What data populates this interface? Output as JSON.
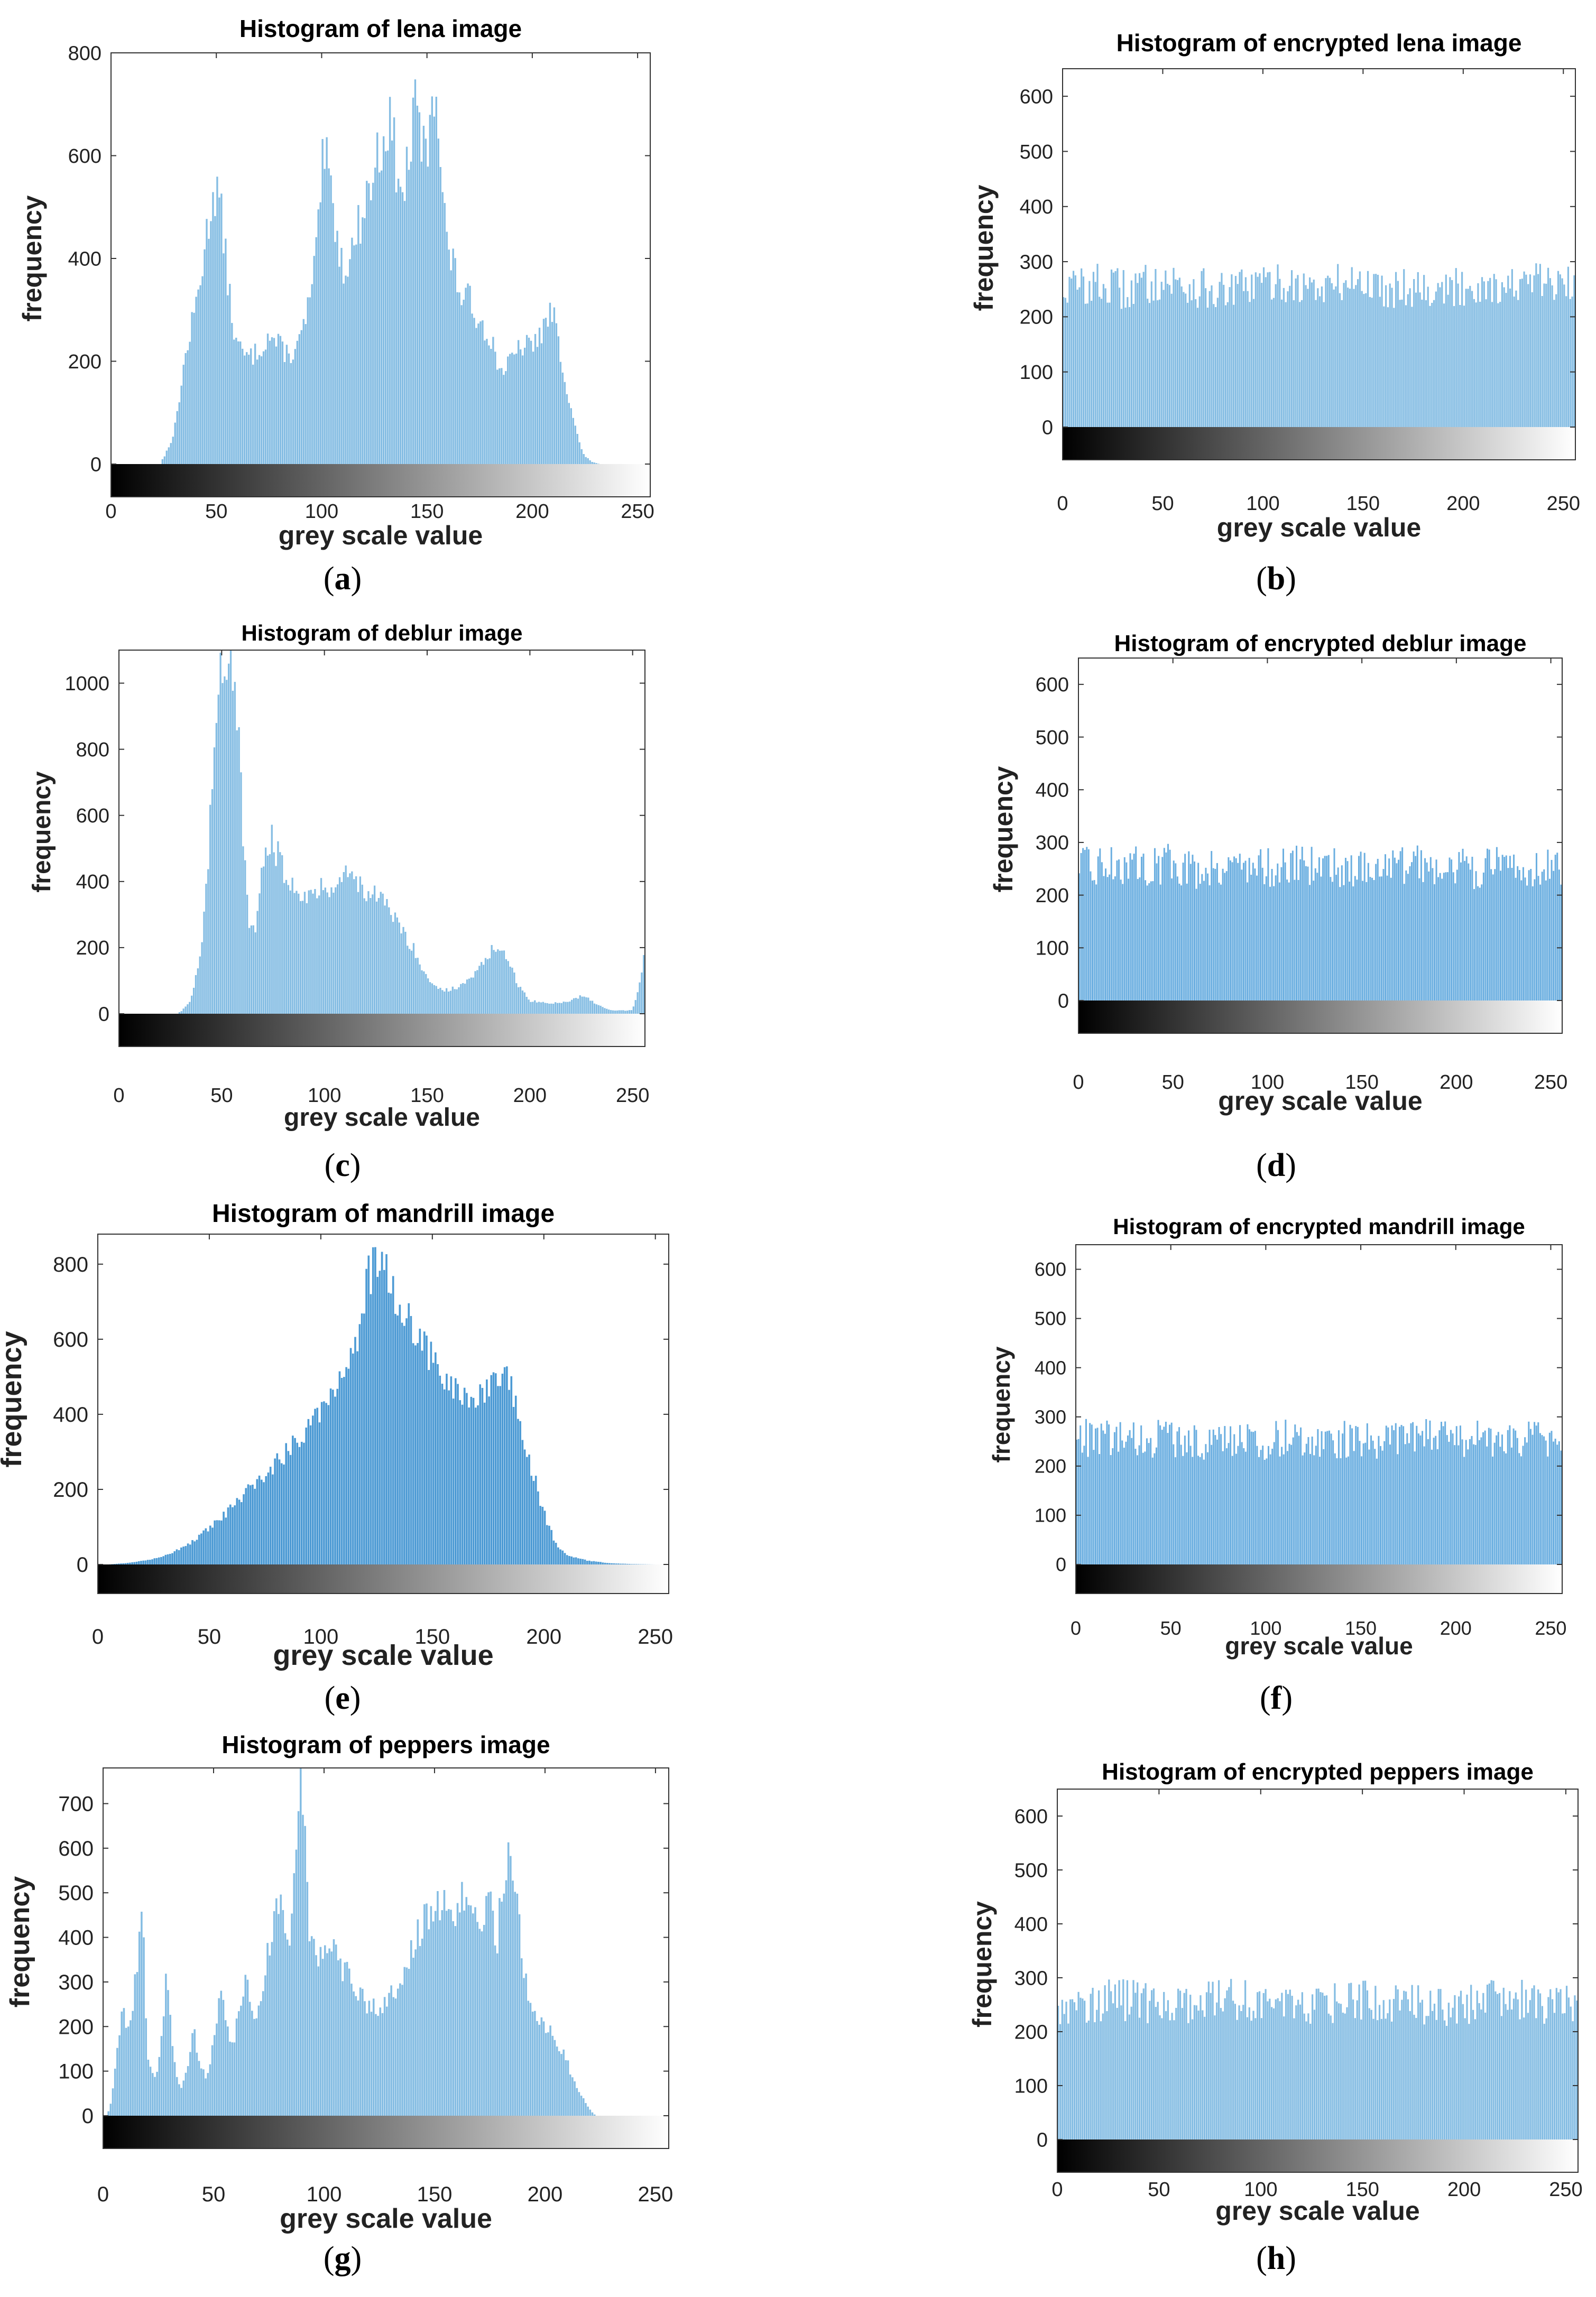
{
  "chart_data": [
    {
      "id": "a",
      "type": "bar",
      "label": "a",
      "title": "Histogram of lena image",
      "xlabel": "grey scale value",
      "ylabel": "frequency",
      "xlim": [
        0,
        256
      ],
      "ylim": [
        0,
        800
      ],
      "xticks": [
        0,
        50,
        100,
        150,
        200,
        250
      ],
      "yticks": [
        0,
        200,
        400,
        600,
        800
      ],
      "color": "#85bde3",
      "x": [
        25,
        30,
        35,
        40,
        45,
        48,
        50,
        52,
        55,
        58,
        60,
        65,
        70,
        75,
        80,
        85,
        90,
        95,
        98,
        100,
        102,
        105,
        108,
        110,
        115,
        120,
        125,
        130,
        133,
        135,
        138,
        140,
        143,
        145,
        148,
        150,
        152,
        154,
        156,
        158,
        160,
        163,
        166,
        170,
        175,
        180,
        185,
        190,
        195,
        200,
        205,
        210,
        213,
        216,
        220,
        224,
        228,
        232
      ],
      "values": [
        10,
        60,
        200,
        300,
        430,
        520,
        540,
        500,
        380,
        270,
        230,
        205,
        220,
        250,
        230,
        210,
        240,
        330,
        420,
        570,
        590,
        520,
        430,
        380,
        420,
        500,
        570,
        650,
        660,
        600,
        500,
        560,
        640,
        700,
        620,
        580,
        720,
        760,
        640,
        500,
        420,
        380,
        330,
        320,
        280,
        250,
        180,
        200,
        230,
        230,
        260,
        300,
        220,
        160,
        80,
        20,
        5,
        0
      ]
    },
    {
      "id": "b",
      "type": "bar",
      "label": "b",
      "title": "Histogram of encrypted lena image",
      "xlabel": "grey scale value",
      "ylabel": "frequency",
      "xlim": [
        0,
        256
      ],
      "ylim": [
        0,
        650
      ],
      "xticks": [
        0,
        50,
        100,
        150,
        200,
        250
      ],
      "yticks": [
        0,
        100,
        200,
        300,
        400,
        500,
        600
      ],
      "color": "#85bde3",
      "x": [
        0,
        16,
        32,
        48,
        64,
        80,
        96,
        112,
        128,
        144,
        160,
        176,
        192,
        208,
        224,
        240,
        255
      ],
      "values": [
        255,
        262,
        250,
        270,
        258,
        245,
        260,
        265,
        252,
        268,
        255,
        260,
        250,
        262,
        258,
        265,
        255
      ],
      "note": "roughly uniform distribution, about 255 with fluctuation 215-290"
    },
    {
      "id": "c",
      "type": "bar",
      "label": "c",
      "title": "Histogram of deblur image",
      "xlabel": "grey scale value",
      "ylabel": "frequency",
      "xlim": [
        0,
        256
      ],
      "ylim": [
        0,
        1100
      ],
      "xticks": [
        0,
        50,
        100,
        150,
        200,
        250
      ],
      "yticks": [
        0,
        200,
        400,
        600,
        800,
        1000
      ],
      "color": "#85bde3",
      "x": [
        30,
        35,
        40,
        43,
        46,
        48,
        50,
        52,
        55,
        57,
        60,
        63,
        66,
        68,
        70,
        72,
        75,
        78,
        80,
        85,
        90,
        95,
        100,
        105,
        110,
        115,
        120,
        125,
        130,
        135,
        140,
        145,
        150,
        155,
        160,
        165,
        170,
        175,
        180,
        183,
        186,
        190,
        195,
        200,
        210,
        220,
        225,
        230,
        235,
        240,
        245,
        250,
        254,
        256
      ],
      "values": [
        5,
        40,
        180,
        400,
        750,
        1000,
        1100,
        1100,
        1100,
        1000,
        600,
        280,
        240,
        300,
        450,
        530,
        520,
        470,
        430,
        390,
        370,
        360,
        380,
        400,
        420,
        410,
        380,
        350,
        330,
        280,
        230,
        180,
        110,
        80,
        70,
        80,
        100,
        130,
        180,
        200,
        190,
        150,
        80,
        40,
        30,
        40,
        55,
        40,
        20,
        10,
        10,
        10,
        100,
        200
      ]
    },
    {
      "id": "d",
      "type": "bar",
      "label": "d",
      "title": "Histogram of encrypted deblur image",
      "xlabel": "grey scale value",
      "ylabel": "frequency",
      "xlim": [
        0,
        256
      ],
      "ylim": [
        0,
        650
      ],
      "xticks": [
        0,
        50,
        100,
        150,
        200,
        250
      ],
      "yticks": [
        0,
        100,
        200,
        300,
        400,
        500,
        600
      ],
      "color": "#6aaee0",
      "x": [
        0,
        16,
        32,
        48,
        64,
        80,
        96,
        112,
        128,
        144,
        160,
        176,
        192,
        208,
        224,
        240,
        255
      ],
      "values": [
        255,
        260,
        258,
        262,
        250,
        265,
        255,
        258,
        262,
        252,
        260,
        257,
        264,
        250,
        258,
        255,
        258
      ],
      "note": "roughly uniform distribution, about 255 with fluctuation 215-295"
    },
    {
      "id": "e",
      "type": "bar",
      "label": "e",
      "title": "Histogram of mandrill image",
      "xlabel": "grey scale value",
      "ylabel": "frequency",
      "xlim": [
        0,
        256
      ],
      "ylim": [
        0,
        880
      ],
      "xticks": [
        0,
        50,
        100,
        150,
        200,
        250
      ],
      "yticks": [
        0,
        200,
        400,
        600,
        800
      ],
      "color": "#4c9ad4",
      "x": [
        5,
        15,
        25,
        35,
        45,
        55,
        65,
        75,
        85,
        95,
        105,
        112,
        118,
        122,
        126,
        130,
        135,
        140,
        145,
        150,
        155,
        160,
        165,
        170,
        175,
        180,
        183,
        186,
        190,
        195,
        200,
        205,
        210,
        220,
        230,
        240,
        250
      ],
      "values": [
        0,
        5,
        15,
        35,
        70,
        120,
        180,
        240,
        300,
        380,
        460,
        540,
        640,
        780,
        800,
        770,
        700,
        640,
        590,
        550,
        510,
        460,
        430,
        440,
        460,
        480,
        490,
        460,
        350,
        250,
        140,
        60,
        25,
        10,
        3,
        1,
        0
      ]
    },
    {
      "id": "f",
      "type": "bar",
      "label": "f",
      "title": "Histogram of encrypted mandrill image",
      "xlabel": "grey scale value",
      "ylabel": "frequency",
      "xlim": [
        0,
        256
      ],
      "ylim": [
        0,
        650
      ],
      "xticks": [
        0,
        50,
        100,
        150,
        200,
        250
      ],
      "yticks": [
        0,
        100,
        200,
        300,
        400,
        500,
        600
      ],
      "color": "#6aaee0",
      "x": [
        0,
        16,
        32,
        48,
        64,
        80,
        96,
        112,
        128,
        144,
        160,
        176,
        192,
        208,
        224,
        240,
        255
      ],
      "values": [
        262,
        258,
        255,
        260,
        252,
        258,
        250,
        262,
        255,
        258,
        252,
        260,
        265,
        258,
        255,
        260,
        250
      ],
      "note": "roughly uniform distribution, about 255 with fluctuation 215-305"
    },
    {
      "id": "g",
      "type": "bar",
      "label": "g",
      "title": "Histogram of peppers image",
      "xlabel": "grey scale value",
      "ylabel": "frequency",
      "xlim": [
        0,
        256
      ],
      "ylim": [
        0,
        780
      ],
      "xticks": [
        0,
        50,
        100,
        150,
        200,
        250
      ],
      "yticks": [
        0,
        100,
        200,
        300,
        400,
        500,
        600,
        700
      ],
      "color": "#85bde3",
      "x": [
        3,
        6,
        9,
        12,
        15,
        18,
        20,
        23,
        26,
        29,
        32,
        35,
        38,
        41,
        44,
        47,
        50,
        53,
        56,
        59,
        62,
        65,
        68,
        72,
        76,
        80,
        84,
        86,
        88,
        90,
        92,
        94,
        97,
        100,
        105,
        110,
        115,
        120,
        125,
        130,
        135,
        140,
        145,
        150,
        155,
        160,
        165,
        170,
        175,
        178,
        181,
        185,
        188,
        191,
        195,
        200,
        205,
        210,
        215,
        220,
        223
      ],
      "values": [
        10,
        120,
        240,
        180,
        320,
        450,
        150,
        80,
        130,
        350,
        120,
        60,
        100,
        200,
        110,
        80,
        160,
        280,
        200,
        150,
        260,
        300,
        200,
        280,
        400,
        500,
        380,
        460,
        620,
        780,
        560,
        380,
        350,
        380,
        360,
        320,
        290,
        250,
        230,
        260,
        320,
        380,
        430,
        470,
        500,
        450,
        510,
        400,
        490,
        380,
        520,
        600,
        480,
        300,
        240,
        200,
        170,
        120,
        60,
        15,
        0
      ]
    },
    {
      "id": "h",
      "type": "bar",
      "label": "h",
      "title": "Histogram of encrypted peppers image",
      "xlabel": "grey scale value",
      "ylabel": "frequency",
      "xlim": [
        0,
        256
      ],
      "ylim": [
        0,
        650
      ],
      "xticks": [
        0,
        50,
        100,
        150,
        200,
        250
      ],
      "yticks": [
        0,
        100,
        200,
        300,
        400,
        500,
        600
      ],
      "color": "#85bde3",
      "x": [
        0,
        16,
        32,
        48,
        64,
        80,
        96,
        112,
        128,
        144,
        160,
        176,
        192,
        208,
        224,
        240,
        255
      ],
      "values": [
        250,
        258,
        262,
        255,
        248,
        268,
        260,
        255,
        250,
        262,
        258,
        255,
        250,
        258,
        262,
        255,
        258
      ],
      "note": "roughly uniform distribution, about 255 with fluctuation 215-305"
    }
  ]
}
